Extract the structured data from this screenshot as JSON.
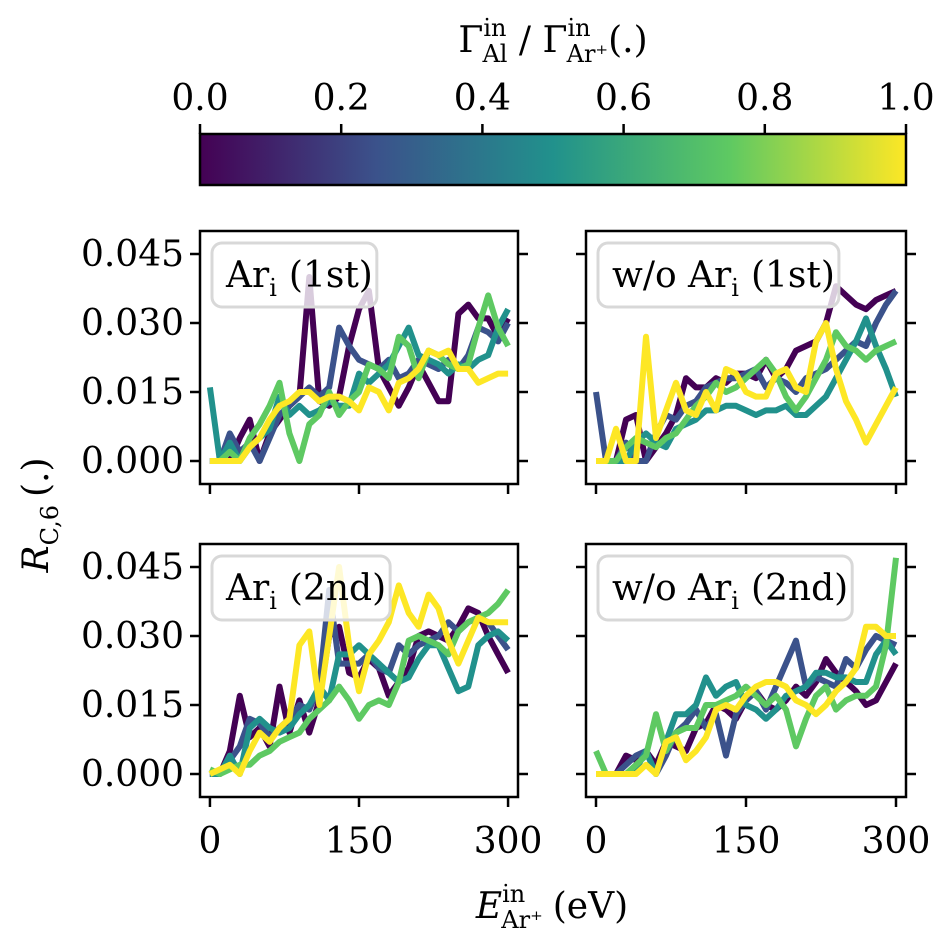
{
  "figure": {
    "colorbar": {
      "label_main": "Γ",
      "label_sup": "in",
      "label_sub1": "Al",
      "label_sep": " / ",
      "label_sub2": "Ar⁺",
      "label_unit": "(.)",
      "ticks": [
        "0.0",
        "0.2",
        "0.4",
        "0.6",
        "0.8",
        "1.0"
      ],
      "colormap": [
        "#440154",
        "#3b528b",
        "#21918c",
        "#5ec962",
        "#fde725"
      ]
    },
    "ylabel": {
      "main": "R",
      "sub": "C,6",
      "unit": "(.)"
    },
    "xlabel": {
      "main": "E",
      "sup": "in",
      "sub": "Ar⁺",
      "unit": "(eV)"
    },
    "yticks": [
      "0.000",
      "0.015",
      "0.030",
      "0.045"
    ],
    "xticks": [
      "0",
      "150",
      "300"
    ]
  },
  "chart_data": [
    {
      "type": "line",
      "panel_label": "Ar",
      "panel_label_sub": "i",
      "panel_label_suffix": "(1st)",
      "x": [
        0,
        10,
        20,
        30,
        40,
        50,
        60,
        70,
        80,
        90,
        100,
        110,
        120,
        130,
        140,
        150,
        160,
        170,
        180,
        190,
        200,
        210,
        220,
        230,
        240,
        250,
        260,
        270,
        280,
        290,
        300
      ],
      "xlim": [
        -10,
        310
      ],
      "ylim": [
        -0.005,
        0.05
      ],
      "series": [
        {
          "color": "#440154",
          "values": [
            0.0,
            0.0,
            0.0,
            0.005,
            0.009,
            0.0,
            0.006,
            0.009,
            0.012,
            0.014,
            0.04,
            0.013,
            0.012,
            0.014,
            0.025,
            0.033,
            0.037,
            0.02,
            0.016,
            0.012,
            0.016,
            0.021,
            0.017,
            0.013,
            0.013,
            0.032,
            0.034,
            0.031,
            0.031,
            0.027,
            0.031
          ]
        },
        {
          "color": "#3b528b",
          "values": [
            0.0,
            0.0,
            0.006,
            0.002,
            0.004,
            0.0,
            0.005,
            0.01,
            0.012,
            0.014,
            0.016,
            0.014,
            0.016,
            0.029,
            0.025,
            0.022,
            0.021,
            0.02,
            0.022,
            0.018,
            0.019,
            0.022,
            0.021,
            0.02,
            0.022,
            0.02,
            0.023,
            0.029,
            0.028,
            0.026,
            0.03
          ]
        },
        {
          "color": "#21918c",
          "values": [
            0.016,
            0.0,
            0.004,
            0.0,
            0.003,
            0.005,
            0.007,
            0.014,
            0.01,
            0.012,
            0.01,
            0.011,
            0.013,
            0.012,
            0.012,
            0.019,
            0.017,
            0.019,
            0.021,
            0.025,
            0.029,
            0.023,
            0.022,
            0.021,
            0.019,
            0.021,
            0.02,
            0.022,
            0.023,
            0.029,
            0.033
          ]
        },
        {
          "color": "#5ec962",
          "values": [
            0.0,
            0.0,
            0.002,
            0.0,
            0.005,
            0.008,
            0.012,
            0.017,
            0.006,
            0.0,
            0.008,
            0.01,
            0.015,
            0.01,
            0.013,
            0.015,
            0.021,
            0.02,
            0.018,
            0.027,
            0.025,
            0.018,
            0.024,
            0.023,
            0.021,
            0.02,
            0.021,
            0.029,
            0.036,
            0.029,
            0.025
          ]
        },
        {
          "color": "#fde725",
          "values": [
            0.0,
            0.0,
            0.0,
            0.0,
            0.003,
            0.005,
            0.009,
            0.012,
            0.013,
            0.015,
            0.015,
            0.013,
            0.014,
            0.014,
            0.013,
            0.011,
            0.016,
            0.015,
            0.011,
            0.017,
            0.018,
            0.02,
            0.024,
            0.023,
            0.024,
            0.02,
            0.02,
            0.017,
            0.018,
            0.019,
            0.019
          ]
        }
      ]
    },
    {
      "type": "line",
      "panel_label": "w/o Ar",
      "panel_label_sub": "i",
      "panel_label_suffix": "(1st)",
      "x": [
        0,
        10,
        20,
        30,
        40,
        50,
        60,
        70,
        80,
        90,
        100,
        110,
        120,
        130,
        140,
        150,
        160,
        170,
        180,
        190,
        200,
        210,
        220,
        230,
        240,
        250,
        260,
        270,
        280,
        290,
        300
      ],
      "xlim": [
        -10,
        310
      ],
      "ylim": [
        -0.005,
        0.05
      ],
      "series": [
        {
          "color": "#440154",
          "values": [
            0.0,
            0.0,
            0.0,
            0.009,
            0.01,
            0.0,
            0.003,
            0.006,
            0.01,
            0.018,
            0.016,
            0.016,
            0.018,
            0.017,
            0.019,
            0.019,
            0.018,
            0.022,
            0.018,
            0.02,
            0.024,
            0.025,
            0.026,
            0.03,
            0.038,
            0.036,
            0.034,
            0.033,
            0.035,
            0.036,
            0.037
          ]
        },
        {
          "color": "#3b528b",
          "values": [
            0.015,
            0.0,
            0.0,
            0.004,
            0.0,
            0.0,
            0.006,
            0.01,
            0.009,
            0.012,
            0.013,
            0.016,
            0.017,
            0.018,
            0.018,
            0.019,
            0.02,
            0.016,
            0.018,
            0.017,
            0.015,
            0.018,
            0.019,
            0.02,
            0.022,
            0.024,
            0.026,
            0.025,
            0.03,
            0.034,
            0.037
          ]
        },
        {
          "color": "#21918c",
          "values": [
            0.0,
            0.0,
            0.0,
            0.0,
            0.004,
            0.006,
            0.004,
            0.003,
            0.007,
            0.008,
            0.009,
            0.011,
            0.011,
            0.012,
            0.012,
            0.011,
            0.01,
            0.011,
            0.011,
            0.012,
            0.01,
            0.01,
            0.012,
            0.014,
            0.018,
            0.022,
            0.026,
            0.031,
            0.025,
            0.02,
            0.014
          ]
        },
        {
          "color": "#5ec962",
          "values": [
            0.0,
            0.0,
            0.0,
            0.003,
            0.005,
            0.004,
            0.003,
            0.005,
            0.006,
            0.009,
            0.012,
            0.014,
            0.017,
            0.015,
            0.016,
            0.018,
            0.02,
            0.022,
            0.019,
            0.014,
            0.011,
            0.014,
            0.018,
            0.022,
            0.028,
            0.025,
            0.024,
            0.022,
            0.024,
            0.025,
            0.026
          ]
        },
        {
          "color": "#fde725",
          "values": [
            0.0,
            0.0,
            0.007,
            0.0,
            0.0,
            0.027,
            0.005,
            0.011,
            0.017,
            0.011,
            0.01,
            0.015,
            0.011,
            0.02,
            0.019,
            0.015,
            0.014,
            0.014,
            0.019,
            0.02,
            0.016,
            0.015,
            0.026,
            0.03,
            0.02,
            0.013,
            0.009,
            0.004,
            0.008,
            0.012,
            0.016
          ]
        }
      ]
    },
    {
      "type": "line",
      "panel_label": "Ar",
      "panel_label_sub": "i",
      "panel_label_suffix": "(2nd)",
      "x": [
        0,
        10,
        20,
        30,
        40,
        50,
        60,
        70,
        80,
        90,
        100,
        110,
        120,
        130,
        140,
        150,
        160,
        170,
        180,
        190,
        200,
        210,
        220,
        230,
        240,
        250,
        260,
        270,
        280,
        290,
        300
      ],
      "xlim": [
        -10,
        310
      ],
      "ylim": [
        -0.005,
        0.05
      ],
      "series": [
        {
          "color": "#440154",
          "values": [
            0.0,
            0.0,
            0.005,
            0.017,
            0.008,
            0.01,
            0.006,
            0.019,
            0.009,
            0.016,
            0.009,
            0.016,
            0.03,
            0.032,
            0.022,
            0.021,
            0.025,
            0.023,
            0.017,
            0.02,
            0.023,
            0.03,
            0.031,
            0.03,
            0.029,
            0.032,
            0.036,
            0.035,
            0.03,
            0.026,
            0.022
          ]
        },
        {
          "color": "#3b528b",
          "values": [
            0.0,
            0.0,
            0.003,
            0.006,
            0.012,
            0.011,
            0.008,
            0.01,
            0.012,
            0.015,
            0.014,
            0.019,
            0.04,
            0.024,
            0.024,
            0.024,
            0.026,
            0.023,
            0.022,
            0.028,
            0.026,
            0.028,
            0.029,
            0.03,
            0.033,
            0.031,
            0.033,
            0.034,
            0.033,
            0.03,
            0.027
          ]
        },
        {
          "color": "#21918c",
          "values": [
            0.0,
            0.0,
            0.004,
            0.0,
            0.01,
            0.012,
            0.01,
            0.009,
            0.01,
            0.013,
            0.015,
            0.019,
            0.016,
            0.026,
            0.026,
            0.028,
            0.026,
            0.024,
            0.022,
            0.02,
            0.021,
            0.025,
            0.028,
            0.028,
            0.023,
            0.018,
            0.019,
            0.028,
            0.03,
            0.031,
            0.029
          ]
        },
        {
          "color": "#5ec962",
          "values": [
            0.001,
            0.0,
            0.001,
            0.002,
            0.002,
            0.004,
            0.005,
            0.007,
            0.008,
            0.009,
            0.012,
            0.014,
            0.016,
            0.019,
            0.016,
            0.012,
            0.015,
            0.016,
            0.015,
            0.02,
            0.029,
            0.03,
            0.029,
            0.028,
            0.026,
            0.031,
            0.033,
            0.034,
            0.035,
            0.037,
            0.04
          ]
        },
        {
          "color": "#fde725",
          "values": [
            0.0,
            0.001,
            0.002,
            0.0,
            0.005,
            0.009,
            0.007,
            0.01,
            0.012,
            0.028,
            0.031,
            0.015,
            0.03,
            0.045,
            0.028,
            0.018,
            0.026,
            0.029,
            0.033,
            0.041,
            0.035,
            0.032,
            0.039,
            0.036,
            0.029,
            0.024,
            0.029,
            0.034,
            0.033,
            0.033,
            0.033
          ]
        }
      ]
    },
    {
      "type": "line",
      "panel_label": "w/o Ar",
      "panel_label_sub": "i",
      "panel_label_suffix": "(2nd)",
      "x": [
        0,
        10,
        20,
        30,
        40,
        50,
        60,
        70,
        80,
        90,
        100,
        110,
        120,
        130,
        140,
        150,
        160,
        170,
        180,
        190,
        200,
        210,
        220,
        230,
        240,
        250,
        260,
        270,
        280,
        290,
        300
      ],
      "xlim": [
        -10,
        310
      ],
      "ylim": [
        -0.005,
        0.05
      ],
      "series": [
        {
          "color": "#440154",
          "values": [
            0.0,
            0.0,
            0.0,
            0.004,
            0.003,
            0.005,
            0.002,
            0.007,
            0.006,
            0.005,
            0.01,
            0.011,
            0.015,
            0.014,
            0.012,
            0.016,
            0.018,
            0.015,
            0.014,
            0.016,
            0.019,
            0.017,
            0.02,
            0.025,
            0.022,
            0.02,
            0.018,
            0.015,
            0.016,
            0.02,
            0.024
          ]
        },
        {
          "color": "#3b528b",
          "values": [
            0.0,
            0.0,
            0.0,
            0.002,
            0.004,
            0.005,
            0.0,
            0.004,
            0.009,
            0.011,
            0.014,
            0.01,
            0.013,
            0.004,
            0.013,
            0.016,
            0.018,
            0.014,
            0.019,
            0.024,
            0.029,
            0.019,
            0.021,
            0.02,
            0.019,
            0.025,
            0.023,
            0.027,
            0.03,
            0.029,
            0.028
          ]
        },
        {
          "color": "#21918c",
          "values": [
            0.0,
            0.0,
            0.0,
            0.0,
            0.001,
            0.005,
            0.0,
            0.007,
            0.013,
            0.013,
            0.015,
            0.021,
            0.017,
            0.019,
            0.02,
            0.015,
            0.014,
            0.012,
            0.014,
            0.017,
            0.018,
            0.019,
            0.022,
            0.022,
            0.021,
            0.021,
            0.02,
            0.02,
            0.026,
            0.029,
            0.026
          ]
        },
        {
          "color": "#5ec962",
          "values": [
            0.005,
            0.0,
            0.0,
            0.0,
            0.002,
            0.004,
            0.013,
            0.005,
            0.009,
            0.01,
            0.01,
            0.015,
            0.015,
            0.016,
            0.017,
            0.019,
            0.017,
            0.015,
            0.017,
            0.014,
            0.006,
            0.012,
            0.017,
            0.019,
            0.014,
            0.016,
            0.017,
            0.017,
            0.019,
            0.028,
            0.047
          ]
        },
        {
          "color": "#fde725",
          "values": [
            0.0,
            0.0,
            0.0,
            0.0,
            0.0,
            0.002,
            0.0,
            0.007,
            0.008,
            0.003,
            0.005,
            0.008,
            0.014,
            0.015,
            0.014,
            0.017,
            0.019,
            0.02,
            0.02,
            0.019,
            0.016,
            0.015,
            0.013,
            0.015,
            0.018,
            0.02,
            0.023,
            0.032,
            0.032,
            0.03,
            0.03
          ]
        }
      ]
    }
  ]
}
